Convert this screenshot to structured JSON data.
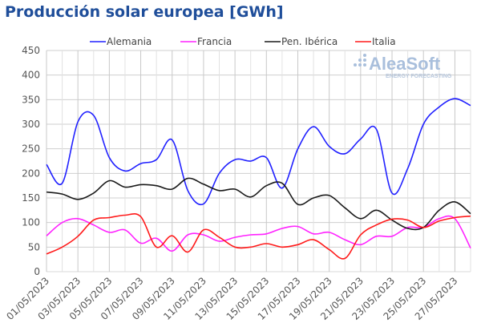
{
  "title": "Producción solar europea [GWh]",
  "watermark": {
    "brand": "AleaSoft",
    "tagline": "ENERGY FORECASTING"
  },
  "chart_data": {
    "type": "line",
    "title": "Producción solar europea [GWh]",
    "xlabel": "",
    "ylabel": "",
    "ylim": [
      0,
      450
    ],
    "yticks": [
      0,
      50,
      100,
      150,
      200,
      250,
      300,
      350,
      400,
      450
    ],
    "grid": true,
    "legend": "top",
    "x": [
      "01/05/2023",
      "02/05/2023",
      "03/05/2023",
      "04/05/2023",
      "05/05/2023",
      "06/05/2023",
      "07/05/2023",
      "08/05/2023",
      "09/05/2023",
      "10/05/2023",
      "11/05/2023",
      "12/05/2023",
      "13/05/2023",
      "14/05/2023",
      "15/05/2023",
      "16/05/2023",
      "17/05/2023",
      "18/05/2023",
      "19/05/2023",
      "20/05/2023",
      "21/05/2023",
      "22/05/2023",
      "23/05/2023",
      "24/05/2023",
      "25/05/2023",
      "26/05/2023",
      "27/05/2023",
      "28/05/2023"
    ],
    "xtick_labels": [
      "01/05/2023",
      "03/05/2023",
      "05/05/2023",
      "07/05/2023",
      "09/05/2023",
      "11/05/2023",
      "13/05/2023",
      "15/05/2023",
      "17/05/2023",
      "19/05/2023",
      "21/05/2023",
      "23/05/2023",
      "25/05/2023",
      "27/05/2023"
    ],
    "series": [
      {
        "name": "Alemania",
        "color": "#2020ff",
        "values": [
          218,
          180,
          305,
          318,
          232,
          205,
          220,
          228,
          268,
          165,
          138,
          200,
          228,
          225,
          232,
          170,
          250,
          295,
          255,
          240,
          270,
          290,
          160,
          210,
          300,
          335,
          352,
          338
        ]
      },
      {
        "name": "Francia",
        "color": "#ff22ff",
        "values": [
          73,
          100,
          108,
          95,
          80,
          85,
          58,
          68,
          42,
          75,
          75,
          62,
          70,
          75,
          77,
          88,
          92,
          77,
          80,
          65,
          55,
          72,
          72,
          90,
          90,
          108,
          108,
          48
        ]
      },
      {
        "name": "Pen. Ibérica",
        "color": "#1a1a1a",
        "values": [
          162,
          158,
          147,
          160,
          185,
          172,
          177,
          175,
          168,
          190,
          178,
          165,
          168,
          152,
          175,
          180,
          137,
          150,
          155,
          130,
          108,
          125,
          105,
          88,
          90,
          125,
          142,
          118
        ]
      },
      {
        "name": "Italia",
        "color": "#ff1a1a",
        "values": [
          36,
          50,
          72,
          105,
          110,
          115,
          112,
          50,
          73,
          40,
          85,
          70,
          50,
          50,
          57,
          50,
          55,
          65,
          45,
          27,
          75,
          95,
          107,
          105,
          90,
          103,
          110,
          113
        ]
      }
    ]
  }
}
